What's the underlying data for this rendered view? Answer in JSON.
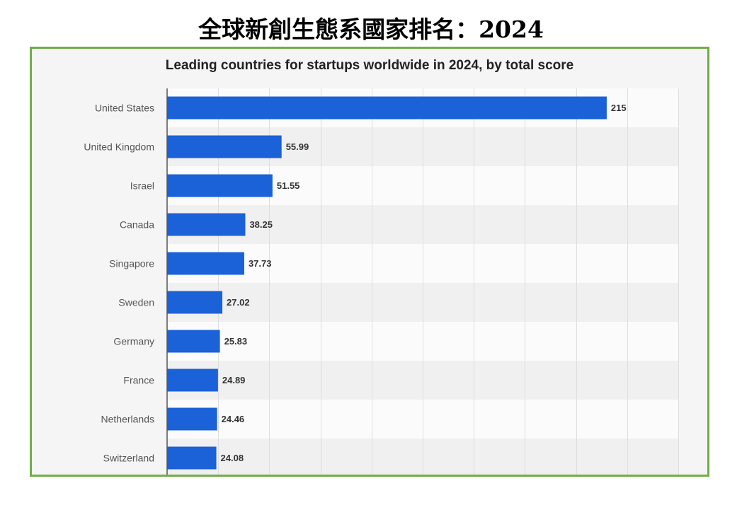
{
  "page": {
    "title": "全球新創生態系國家排名：2024"
  },
  "chart_data": {
    "type": "bar",
    "orientation": "horizontal",
    "title": "Leading countries for startups worldwide in 2024, by total score",
    "categories": [
      "United States",
      "United Kingdom",
      "Israel",
      "Canada",
      "Singapore",
      "Sweden",
      "Germany",
      "France",
      "Netherlands",
      "Switzerland"
    ],
    "values": [
      215,
      55.99,
      51.55,
      38.25,
      37.73,
      27.02,
      25.83,
      24.89,
      24.46,
      24.08
    ],
    "xlim": [
      0,
      250
    ],
    "x_grid_interval": 25,
    "grid": true,
    "legend": "none"
  },
  "colors": {
    "bar": "#1b61d8",
    "frame_border": "#70ad47",
    "axis": "#555555",
    "grid": "#dedede",
    "band": "#fbfbfb",
    "band_alt": "#f0f0f0"
  }
}
